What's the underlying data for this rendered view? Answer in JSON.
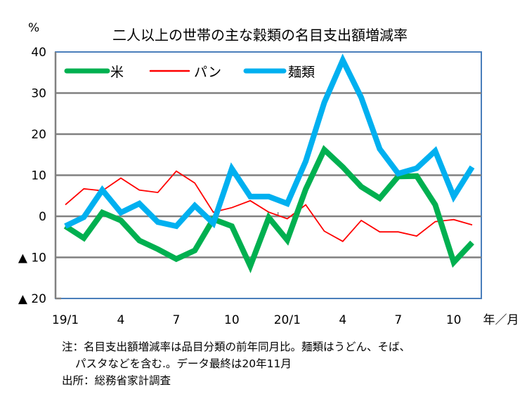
{
  "chart_data": {
    "type": "line",
    "title": "二人以上の世帯の主な穀類の名目支出額増減率",
    "ylabel": "%",
    "xlabel": "年／月",
    "ylim": [
      -20,
      40
    ],
    "yticks": [
      {
        "value": 40,
        "label": "40"
      },
      {
        "value": 30,
        "label": "30"
      },
      {
        "value": 20,
        "label": "20"
      },
      {
        "value": 10,
        "label": "10"
      },
      {
        "value": 0,
        "label": "0"
      },
      {
        "value": -10,
        "label": "▲ 10"
      },
      {
        "value": -20,
        "label": "▲ 20"
      }
    ],
    "grid": true,
    "legend_position": "top-left",
    "x": [
      "19/1",
      "19/2",
      "19/3",
      "19/4",
      "19/5",
      "19/6",
      "19/7",
      "19/8",
      "19/9",
      "19/10",
      "19/11",
      "19/12",
      "20/1",
      "20/2",
      "20/3",
      "20/4",
      "20/5",
      "20/6",
      "20/7",
      "20/8",
      "20/9",
      "20/10",
      "20/11"
    ],
    "xtick_labels": [
      {
        "index": 0,
        "label": "19/1"
      },
      {
        "index": 3,
        "label": "4"
      },
      {
        "index": 6,
        "label": "7"
      },
      {
        "index": 9,
        "label": "10"
      },
      {
        "index": 12,
        "label": "20/1"
      },
      {
        "index": 15,
        "label": "4"
      },
      {
        "index": 18,
        "label": "7"
      },
      {
        "index": 21,
        "label": "10"
      }
    ],
    "series": [
      {
        "name": "米",
        "color": "#00b050",
        "width": "thick",
        "values": [
          -2.4,
          -5.3,
          0.9,
          -1.0,
          -5.9,
          -8.0,
          -10.4,
          -8.3,
          -0.7,
          -2.4,
          -12.1,
          -0.3,
          -5.8,
          6.6,
          16.2,
          12.0,
          7.2,
          4.4,
          9.7,
          9.8,
          2.8,
          -11.2,
          -6.4
        ]
      },
      {
        "name": "パン",
        "color": "#ff0000",
        "width": "thin",
        "values": [
          2.8,
          6.7,
          6.2,
          9.3,
          6.4,
          5.8,
          11.0,
          8.1,
          1.0,
          2.1,
          3.8,
          1.0,
          -0.6,
          2.8,
          -3.6,
          -6.1,
          -1.0,
          -3.8,
          -3.8,
          -4.8,
          -1.3,
          -0.8,
          -2.1
        ]
      },
      {
        "name": "麺類",
        "color": "#00b0f0",
        "width": "thick",
        "values": [
          -2.4,
          -0.2,
          6.4,
          0.9,
          3.1,
          -1.4,
          -2.4,
          2.6,
          -1.7,
          11.6,
          4.8,
          4.8,
          3.1,
          13.4,
          27.7,
          38.0,
          28.9,
          16.4,
          10.4,
          11.7,
          15.9,
          4.8,
          12.0
        ]
      }
    ]
  },
  "notes": {
    "line1": "注：名目支出額増減率は品目分類の前年同月比。麺類はうどん、そば、",
    "line2": "パスタなどを含む.。データ最終は20年11月",
    "source": "出所：総務省家計調査"
  }
}
